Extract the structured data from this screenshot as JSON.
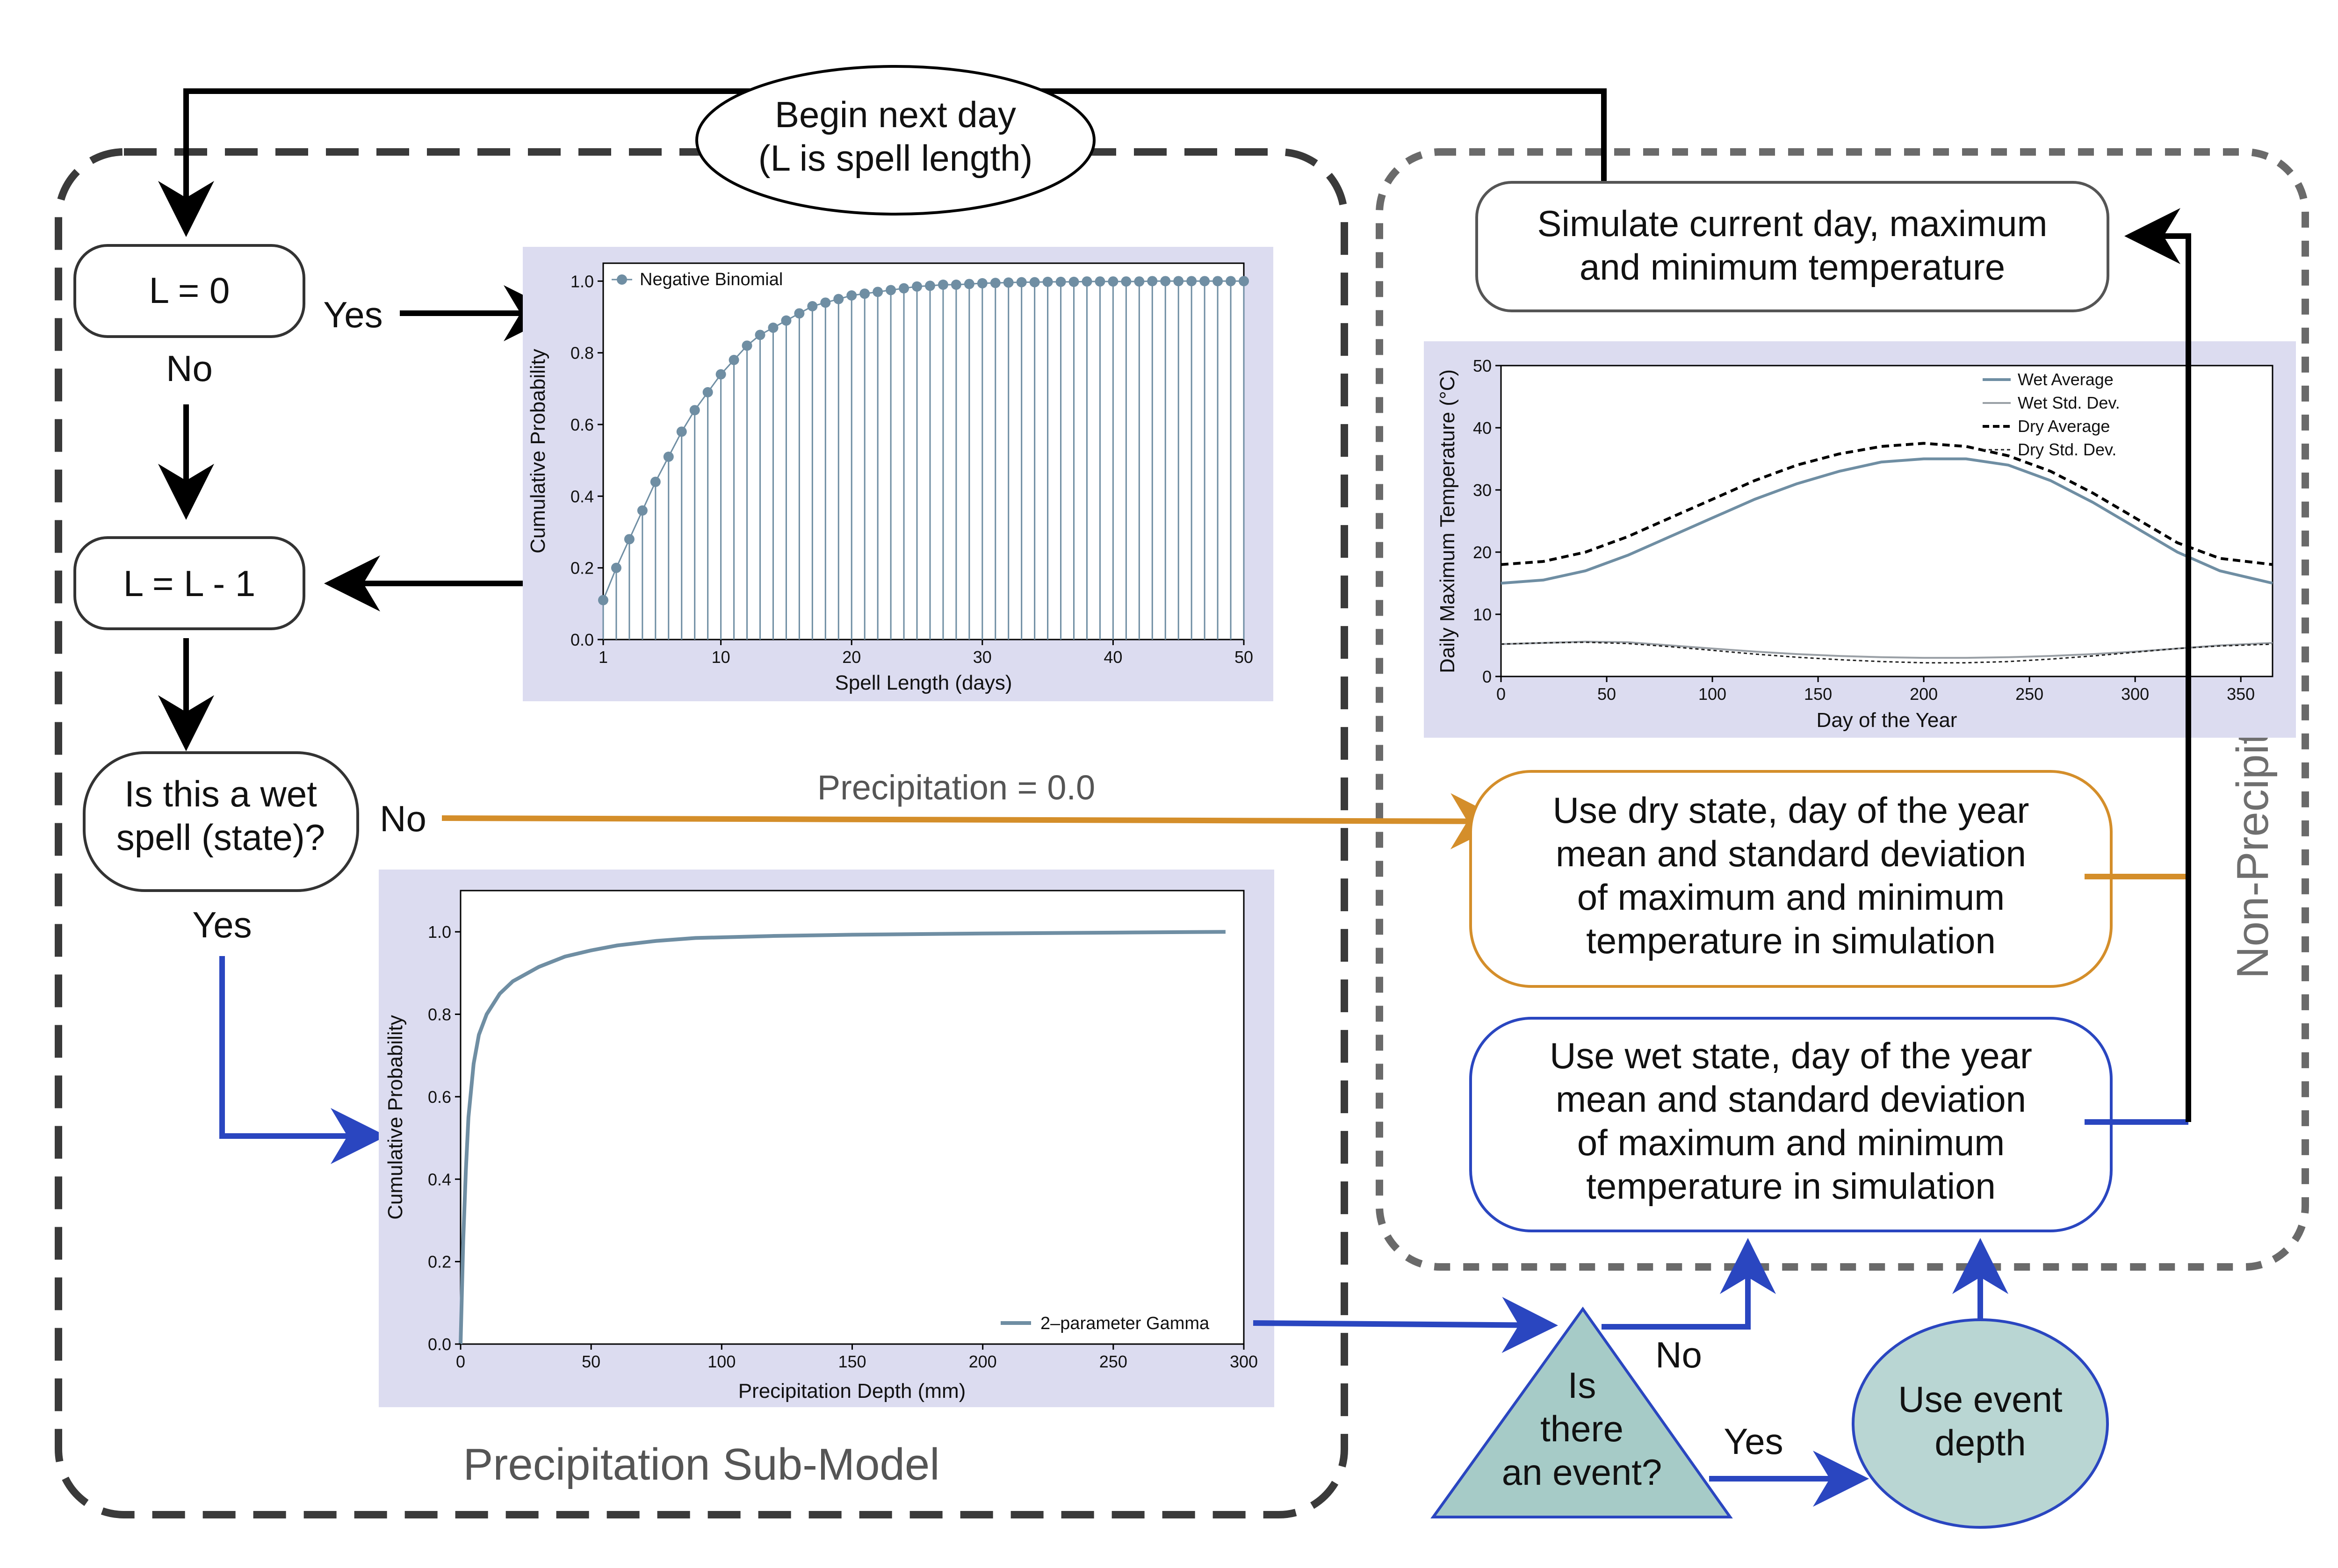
{
  "nodes": {
    "begin_line1": "Begin next day",
    "begin_line2": "(L is spell length)",
    "l_zero": "L = 0",
    "l_minus": "L = L - 1",
    "wet_q_line1": "Is this a wet",
    "wet_q_line2": "spell (state)?",
    "simulate_line1": "Simulate current day, maximum",
    "simulate_line2": "and minimum temperature",
    "dry_line1": "Use dry state, day of the year",
    "dry_line2": "mean and standard deviation",
    "dry_line3": "of maximum and minimum",
    "dry_line4": "temperature in simulation",
    "wet_line1": "Use wet state, day of the year",
    "wet_line2": "mean and standard deviation",
    "wet_line3": "of maximum and minimum",
    "wet_line4": "temperature in simulation",
    "event_q_line1": "Is",
    "event_q_line2": "there",
    "event_q_line3": "an event?",
    "use_depth_line1": "Use event",
    "use_depth_line2": "depth"
  },
  "edge_labels": {
    "yes_lzero": "Yes",
    "no_lzero": "No",
    "no_wet": "No",
    "yes_wet": "Yes",
    "precip_zero": "Precipitation = 0.0",
    "no_event": "No",
    "yes_event": "Yes"
  },
  "groups": {
    "precip_title": "Precipitation Sub-Model",
    "nonprecip_title": "Non-Precipitation Sub-Model"
  },
  "colors": {
    "orange": "#d48e2a",
    "blue": "#2a46c0",
    "panel_bg": "#dcdcf0",
    "series": "#6f8ea3",
    "event_fill": "#b9d6d3",
    "event_tri": "#a6cbc7"
  },
  "chart_data": [
    {
      "type": "line",
      "style": "stem",
      "series": [
        {
          "name": "Negative Binomial",
          "x": [
            1,
            2,
            3,
            4,
            5,
            6,
            7,
            8,
            9,
            10,
            11,
            12,
            13,
            14,
            15,
            16,
            17,
            18,
            19,
            20,
            21,
            22,
            23,
            24,
            25,
            26,
            27,
            28,
            29,
            30,
            31,
            32,
            33,
            34,
            35,
            36,
            37,
            38,
            39,
            40,
            41,
            42,
            43,
            44,
            45,
            46,
            47,
            48,
            49,
            50
          ],
          "values": [
            0.11,
            0.2,
            0.28,
            0.36,
            0.44,
            0.51,
            0.58,
            0.64,
            0.69,
            0.74,
            0.78,
            0.82,
            0.85,
            0.87,
            0.89,
            0.91,
            0.93,
            0.94,
            0.95,
            0.96,
            0.965,
            0.97,
            0.975,
            0.98,
            0.985,
            0.987,
            0.99,
            0.99,
            0.992,
            0.994,
            0.995,
            0.996,
            0.997,
            0.997,
            0.998,
            0.998,
            0.998,
            0.999,
            0.999,
            0.999,
            0.999,
            0.999,
            1.0,
            1.0,
            1.0,
            1.0,
            1.0,
            1.0,
            1.0,
            1.0
          ]
        }
      ],
      "xlabel": "Spell Length (days)",
      "ylabel": "Cumulative Probability",
      "xlim": [
        1,
        50
      ],
      "ylim": [
        0,
        1.05
      ],
      "xticks": [
        1,
        10,
        20,
        30,
        40,
        50
      ],
      "xtick_labels": [
        "1",
        "10",
        "20",
        "30",
        "40",
        "50"
      ],
      "yticks": [
        0,
        0.2,
        0.4,
        0.6,
        0.8,
        1.0
      ],
      "ytick_labels": [
        "0.0",
        "0.2",
        "0.4",
        "0.6",
        "0.8",
        "1.0"
      ],
      "legend": "top-left",
      "grid": false
    },
    {
      "type": "line",
      "series": [
        {
          "name": "2–parameter Gamma",
          "x": [
            0,
            1,
            2,
            3,
            5,
            7,
            10,
            15,
            20,
            30,
            40,
            50,
            60,
            75,
            90,
            120,
            150,
            200,
            250,
            293
          ],
          "values": [
            0.0,
            0.25,
            0.42,
            0.55,
            0.68,
            0.75,
            0.8,
            0.85,
            0.88,
            0.915,
            0.94,
            0.955,
            0.967,
            0.978,
            0.985,
            0.99,
            0.993,
            0.996,
            0.998,
            1.0
          ]
        }
      ],
      "xlabel": "Precipitation Depth (mm)",
      "ylabel": "Cumulative Probability",
      "xlim": [
        0,
        300
      ],
      "ylim": [
        0,
        1.1
      ],
      "xticks": [
        0,
        50,
        100,
        150,
        200,
        250,
        300
      ],
      "xtick_labels": [
        "0",
        "50",
        "100",
        "150",
        "200",
        "250",
        "300"
      ],
      "yticks": [
        0,
        0.2,
        0.4,
        0.6,
        0.8,
        1.0
      ],
      "ytick_labels": [
        "0.0",
        "0.2",
        "0.4",
        "0.6",
        "0.8",
        "1.0"
      ],
      "legend": "bottom-right",
      "grid": false
    },
    {
      "type": "line",
      "x": [
        0,
        20,
        40,
        60,
        80,
        100,
        120,
        140,
        160,
        180,
        200,
        220,
        240,
        260,
        280,
        300,
        320,
        340,
        365
      ],
      "series": [
        {
          "name": "Wet Average",
          "values": [
            15,
            15.5,
            17,
            19.5,
            22.5,
            25.5,
            28.5,
            31,
            33,
            34.5,
            35,
            35,
            34,
            31.5,
            28,
            24,
            20,
            17,
            15
          ]
        },
        {
          "name": "Wet Std. Dev.",
          "values": [
            5.2,
            5.4,
            5.6,
            5.5,
            5.0,
            4.5,
            4.0,
            3.6,
            3.3,
            3.1,
            3.0,
            3.0,
            3.1,
            3.3,
            3.6,
            4.0,
            4.5,
            5.0,
            5.4
          ]
        },
        {
          "name": "Dry Average",
          "values": [
            18,
            18.5,
            20,
            22.5,
            25.5,
            28.5,
            31.5,
            34,
            35.8,
            37,
            37.5,
            37,
            35.5,
            33,
            29.5,
            25.5,
            21.5,
            19,
            18
          ]
        },
        {
          "name": "Dry Std. Dev.",
          "values": [
            5.2,
            5.4,
            5.5,
            5.3,
            4.8,
            4.2,
            3.6,
            3.1,
            2.7,
            2.4,
            2.2,
            2.2,
            2.4,
            2.8,
            3.3,
            3.9,
            4.5,
            4.9,
            5.2
          ]
        }
      ],
      "xlabel": "Day of the Year",
      "ylabel": "Daily Maximum Temperature (°C)",
      "xlim": [
        0,
        365
      ],
      "ylim": [
        0,
        50
      ],
      "xticks": [
        0,
        50,
        100,
        150,
        200,
        250,
        300,
        350
      ],
      "xtick_labels": [
        "0",
        "50",
        "100",
        "150",
        "200",
        "250",
        "300",
        "350"
      ],
      "yticks": [
        0,
        10,
        20,
        30,
        40,
        50
      ],
      "ytick_labels": [
        "0",
        "10",
        "20",
        "30",
        "40",
        "50"
      ],
      "legend": "top-right",
      "grid": false
    }
  ]
}
